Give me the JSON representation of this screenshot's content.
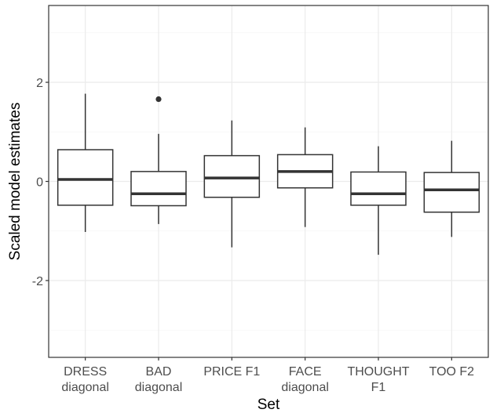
{
  "chart_data": {
    "type": "boxplot",
    "xlabel": "Set",
    "ylabel": "Scaled model estimates",
    "ylim": [
      -3.55,
      3.55
    ],
    "y_ticks": [
      -2,
      0,
      2
    ],
    "y_tick_labels": [
      "-2",
      "0",
      "2"
    ],
    "grid": true,
    "legend": "none",
    "categories": [
      [
        "DRESS",
        "diagonal"
      ],
      [
        "BAD",
        "diagonal"
      ],
      [
        "PRICE F1"
      ],
      [
        "FACE",
        "diagonal"
      ],
      [
        "THOUGHT",
        "F1"
      ],
      [
        "TOO F2"
      ]
    ],
    "boxes": [
      {
        "whisker_low": -1.02,
        "q1": -0.48,
        "median": 0.04,
        "q3": 0.64,
        "whisker_high": 1.77,
        "outliers": []
      },
      {
        "whisker_low": -0.86,
        "q1": -0.49,
        "median": -0.25,
        "q3": 0.2,
        "whisker_high": 0.96,
        "outliers": [
          1.66
        ]
      },
      {
        "whisker_low": -1.33,
        "q1": -0.32,
        "median": 0.07,
        "q3": 0.52,
        "whisker_high": 1.23,
        "outliers": []
      },
      {
        "whisker_low": -0.92,
        "q1": -0.13,
        "median": 0.2,
        "q3": 0.54,
        "whisker_high": 1.09,
        "outliers": []
      },
      {
        "whisker_low": -1.48,
        "q1": -0.48,
        "median": -0.25,
        "q3": 0.19,
        "whisker_high": 0.71,
        "outliers": []
      },
      {
        "whisker_low": -1.12,
        "q1": -0.62,
        "median": -0.17,
        "q3": 0.18,
        "whisker_high": 0.82,
        "outliers": []
      }
    ],
    "colors": {
      "background": "#ffffff",
      "grid_major": "#ebebeb",
      "grid_minor": "#f5f5f5",
      "panel_border": "#333333",
      "box_stroke": "#333333",
      "box_fill": "#ffffff",
      "tick_label": "#4d4d4d",
      "axis_title": "#000000"
    }
  }
}
